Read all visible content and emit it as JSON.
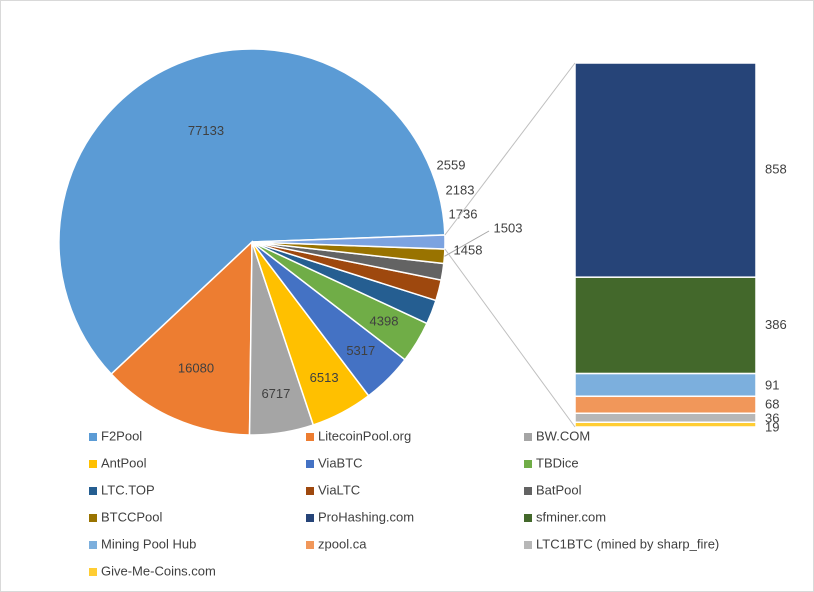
{
  "chart_data": {
    "type": "pie",
    "subtype": "bar-of-pie",
    "title": "",
    "legend_position": "bottom",
    "series": [
      {
        "name": "F2Pool",
        "value": 77133,
        "color": "#5B9BD5",
        "label": "77133"
      },
      {
        "name": "LitecoinPool.org",
        "value": 16080,
        "color": "#ED7D31",
        "label": "16080"
      },
      {
        "name": "BW.COM",
        "value": 6717,
        "color": "#A5A5A5",
        "label": "6717"
      },
      {
        "name": "AntPool",
        "value": 6513,
        "color": "#FFC000",
        "label": "6513"
      },
      {
        "name": "ViaBTC",
        "value": 5317,
        "color": "#4472C4",
        "label": "5317"
      },
      {
        "name": "TBDice",
        "value": 4398,
        "color": "#70AD47",
        "label": "4398"
      },
      {
        "name": "LTC.TOP",
        "value": 2559,
        "color": "#255E91",
        "label": "2559"
      },
      {
        "name": "ViaLTC",
        "value": 2183,
        "color": "#9E480E",
        "label": "2183"
      },
      {
        "name": "BatPool",
        "value": 1736,
        "color": "#636363",
        "label": "1736"
      },
      {
        "name": "BTCCPool",
        "value": 1503,
        "color": "#997300",
        "label": "1503"
      },
      {
        "name": "ProHashing.com",
        "value": 858,
        "color": "#264478",
        "label": "858"
      },
      {
        "name": "sfminer.com",
        "value": 386,
        "color": "#43682B",
        "label": "386"
      },
      {
        "name": "Mining Pool Hub",
        "value": 91,
        "color": "#7CAFDD",
        "label": "91"
      },
      {
        "name": "zpool.ca",
        "value": 68,
        "color": "#F1975A",
        "label": "68"
      },
      {
        "name": "LTC1BTC (mined by sharp_fire)",
        "value": 36,
        "color": "#B7B7B7",
        "label": "36"
      },
      {
        "name": "Give-Me-Coins.com",
        "value": 19,
        "color": "#FFCD33",
        "label": "19"
      }
    ],
    "other_slice": {
      "value": 1458,
      "color": "#7CA3E0",
      "label": "1458"
    },
    "bar_items": [
      "ProHashing.com",
      "sfminer.com",
      "Mining Pool Hub",
      "zpool.ca",
      "LTC1BTC (mined by sharp_fire)",
      "Give-Me-Coins.com"
    ]
  }
}
